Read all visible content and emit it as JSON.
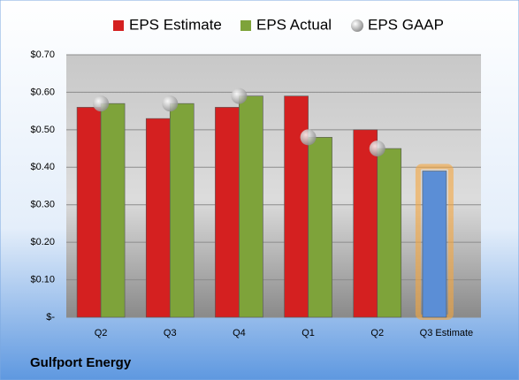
{
  "chart_data": {
    "type": "bar",
    "title": "Gulfport Energy",
    "categories": [
      "Q2",
      "Q3",
      "Q4",
      "Q1",
      "Q2",
      "Q3 Estimate"
    ],
    "series": [
      {
        "name": "EPS Estimate",
        "color": "#d42020",
        "colors": [
          "#d42020",
          "#d42020",
          "#d42020",
          "#d42020",
          "#d42020",
          "#5b8ed6"
        ],
        "values": [
          0.56,
          0.53,
          0.56,
          0.59,
          0.5,
          0.39
        ]
      },
      {
        "name": "EPS Actual",
        "color": "#7ea33a",
        "values": [
          0.57,
          0.57,
          0.59,
          0.48,
          0.45,
          null
        ]
      },
      {
        "name": "EPS GAAP",
        "color": "#b8b8b8",
        "marker": "circle",
        "values": [
          0.57,
          0.57,
          0.59,
          0.48,
          0.45,
          null
        ]
      }
    ],
    "ylim": [
      0,
      0.7
    ],
    "yticks": [
      {
        "value": 0,
        "label": "$-"
      },
      {
        "value": 0.1,
        "label": "$0.10"
      },
      {
        "value": 0.2,
        "label": "$0.20"
      },
      {
        "value": 0.3,
        "label": "$0.30"
      },
      {
        "value": 0.4,
        "label": "$0.40"
      },
      {
        "value": 0.5,
        "label": "$0.50"
      },
      {
        "value": 0.6,
        "label": "$0.60"
      },
      {
        "value": 0.7,
        "label": "$0.70"
      }
    ],
    "grid": true
  }
}
